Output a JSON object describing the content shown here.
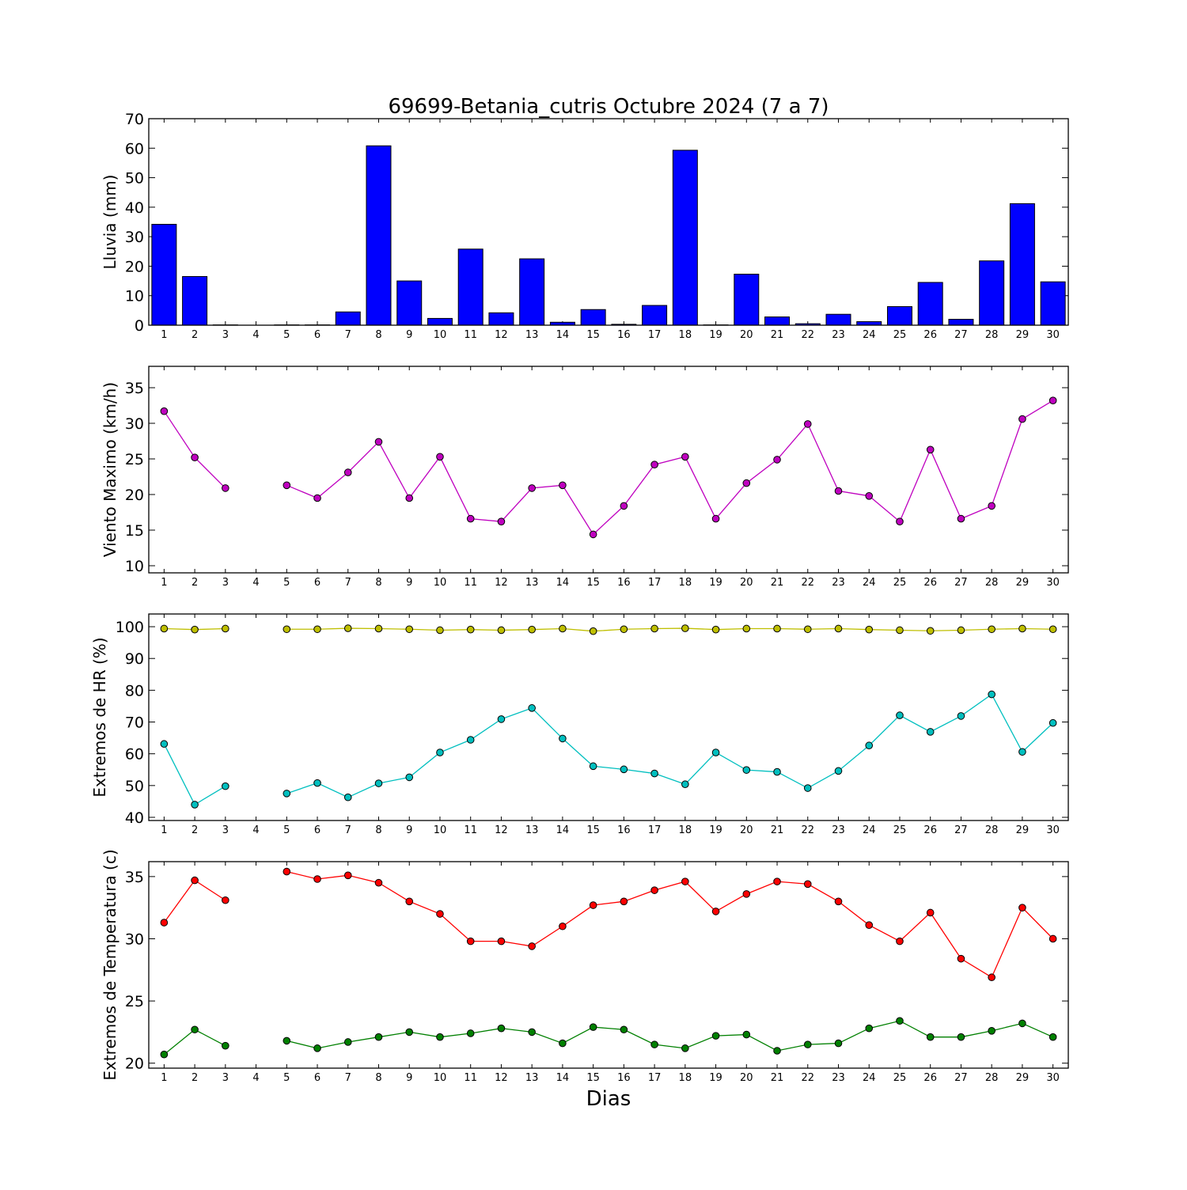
{
  "title": "69699-Betania_cutris Octubre 2024  (7 a 7)",
  "xlabel": "Dias",
  "chart_data": [
    {
      "type": "bar",
      "ylabel": "Lluvia (mm)",
      "ylim": [
        0,
        70
      ],
      "yticks": [
        0,
        10,
        20,
        30,
        40,
        50,
        60,
        70
      ],
      "categories": [
        1,
        2,
        3,
        4,
        5,
        6,
        7,
        8,
        9,
        10,
        11,
        12,
        13,
        14,
        15,
        16,
        17,
        18,
        19,
        20,
        21,
        22,
        23,
        24,
        25,
        26,
        27,
        28,
        29,
        30
      ],
      "series": [
        {
          "color": "#0000ff",
          "values": [
            34.2,
            16.5,
            0.1,
            0.0,
            0.1,
            0.1,
            4.5,
            60.8,
            15.0,
            2.3,
            25.8,
            4.2,
            22.5,
            1.0,
            5.3,
            0.3,
            6.7,
            59.3,
            0.1,
            17.3,
            2.8,
            0.5,
            3.7,
            1.2,
            6.3,
            14.5,
            2.0,
            21.8,
            41.2,
            14.7
          ]
        }
      ]
    },
    {
      "type": "line",
      "ylabel": "Viento Maximo (km/h)",
      "ylim": [
        9,
        38
      ],
      "yticks": [
        10,
        15,
        20,
        25,
        30,
        35
      ],
      "x": [
        1,
        2,
        3,
        4,
        5,
        6,
        7,
        8,
        9,
        10,
        11,
        12,
        13,
        14,
        15,
        16,
        17,
        18,
        19,
        20,
        21,
        22,
        23,
        24,
        25,
        26,
        27,
        28,
        29,
        30
      ],
      "series": [
        {
          "color": "#bf00bf",
          "values": [
            31.7,
            25.2,
            20.9,
            null,
            21.3,
            19.5,
            23.1,
            27.4,
            19.5,
            25.3,
            16.6,
            16.2,
            20.9,
            21.3,
            14.4,
            18.4,
            24.2,
            25.3,
            16.6,
            21.6,
            24.9,
            29.9,
            20.5,
            19.8,
            16.2,
            26.3,
            16.6,
            18.4,
            30.6,
            33.2
          ]
        }
      ]
    },
    {
      "type": "line",
      "ylabel": "Extremos de HR (%)",
      "ylim": [
        39,
        104
      ],
      "yticks": [
        40,
        50,
        60,
        70,
        80,
        90,
        100
      ],
      "x": [
        1,
        2,
        3,
        4,
        5,
        6,
        7,
        8,
        9,
        10,
        11,
        12,
        13,
        14,
        15,
        16,
        17,
        18,
        19,
        20,
        21,
        22,
        23,
        24,
        25,
        26,
        27,
        28,
        29,
        30
      ],
      "series": [
        {
          "color": "#bfbf00",
          "values": [
            99.4,
            99.1,
            99.4,
            null,
            99.2,
            99.2,
            99.5,
            99.4,
            99.2,
            98.9,
            99.1,
            98.9,
            99.1,
            99.4,
            98.6,
            99.2,
            99.4,
            99.5,
            99.1,
            99.4,
            99.4,
            99.2,
            99.4,
            99.1,
            98.9,
            98.7,
            98.9,
            99.2,
            99.4,
            99.2
          ]
        },
        {
          "color": "#00bfbf",
          "values": [
            63.1,
            44.0,
            49.8,
            null,
            47.5,
            50.8,
            46.3,
            50.7,
            52.6,
            60.4,
            64.4,
            70.9,
            74.4,
            64.8,
            56.1,
            55.1,
            53.8,
            50.4,
            60.4,
            54.9,
            54.3,
            49.2,
            54.6,
            62.6,
            72.1,
            66.9,
            71.9,
            78.7,
            60.6,
            69.7
          ]
        }
      ]
    },
    {
      "type": "line",
      "ylabel": "Extremos de Temperatura (c)",
      "ylim": [
        19.6,
        36.2
      ],
      "yticks": [
        20,
        25,
        30,
        35
      ],
      "x": [
        1,
        2,
        3,
        4,
        5,
        6,
        7,
        8,
        9,
        10,
        11,
        12,
        13,
        14,
        15,
        16,
        17,
        18,
        19,
        20,
        21,
        22,
        23,
        24,
        25,
        26,
        27,
        28,
        29,
        30
      ],
      "series": [
        {
          "color": "#ff0000",
          "values": [
            31.3,
            34.7,
            33.1,
            null,
            35.4,
            34.8,
            35.1,
            34.5,
            33.0,
            32.0,
            29.8,
            29.8,
            29.4,
            31.0,
            32.7,
            33.0,
            33.9,
            34.6,
            32.2,
            33.6,
            34.6,
            34.4,
            33.0,
            31.1,
            29.8,
            32.1,
            28.4,
            26.9,
            32.5,
            30.0
          ]
        },
        {
          "color": "#008000",
          "values": [
            20.7,
            22.7,
            21.4,
            null,
            21.8,
            21.2,
            21.7,
            22.1,
            22.5,
            22.1,
            22.4,
            22.8,
            22.5,
            21.6,
            22.9,
            22.7,
            21.5,
            21.2,
            22.2,
            22.3,
            21.0,
            21.5,
            21.6,
            22.8,
            23.4,
            22.1,
            22.1,
            22.6,
            23.2,
            22.1
          ]
        }
      ]
    }
  ]
}
